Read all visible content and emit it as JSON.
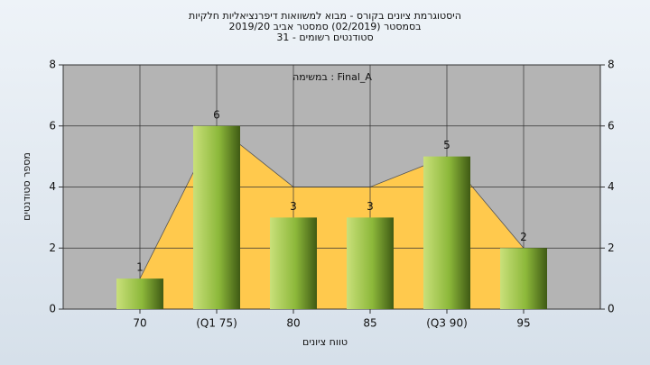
{
  "chart_data": {
    "type": "bar",
    "title_lines": [
      "היסטוגרמת ציונים בקורס - מבוא למשוואות דיפרנציאליות חלקיות",
      "בסמסטר  (02/2019)  סמסטר אביב 2019/20",
      "סטודנטים רשומים - 31"
    ],
    "legend_text": "במשימה : Final_A",
    "x_label": "טווח ציונים",
    "y_label": "מספר סטודנטים",
    "categories": [
      "70",
      "(Q1 75)",
      "80",
      "85",
      "(Q3 90)",
      "95"
    ],
    "values": [
      1,
      6,
      3,
      3,
      5,
      2
    ],
    "area_values": [
      1,
      6,
      4,
      4,
      5,
      2
    ],
    "area_color": "#ffc94d",
    "color": "#8cb83a",
    "ylim": [
      0,
      8
    ],
    "yticks": [
      0,
      2,
      4,
      6,
      8
    ],
    "y2lim": [
      0,
      8
    ],
    "y2ticks": [
      0,
      2,
      4,
      6,
      8
    ],
    "grid": true
  }
}
